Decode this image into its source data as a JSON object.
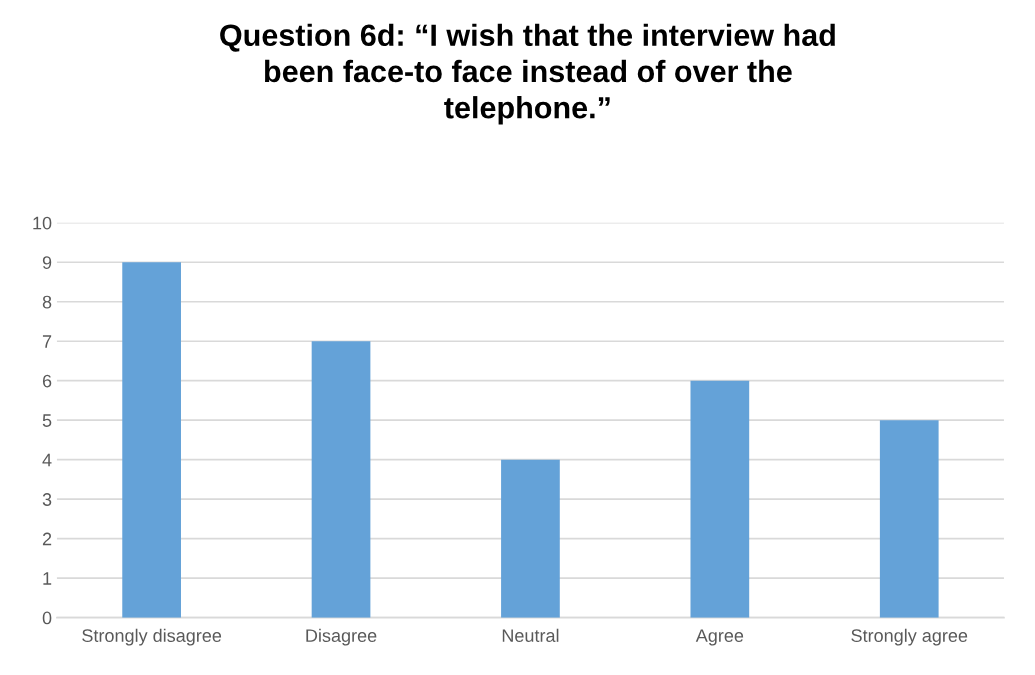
{
  "chart_data": {
    "type": "bar",
    "title": "Question 6d: “I wish that the interview had\nbeen face-to face instead of over the\ntelephone.”",
    "categories": [
      "Strongly disagree",
      "Disagree",
      "Neutral",
      "Agree",
      "Strongly agree"
    ],
    "values": [
      9,
      7,
      4,
      6,
      5
    ],
    "color": "#64a2d8",
    "ylim": [
      0,
      10
    ],
    "yticks": [
      0,
      1,
      2,
      3,
      4,
      5,
      6,
      7,
      8,
      9,
      10
    ],
    "grid": "y",
    "legend": false
  }
}
